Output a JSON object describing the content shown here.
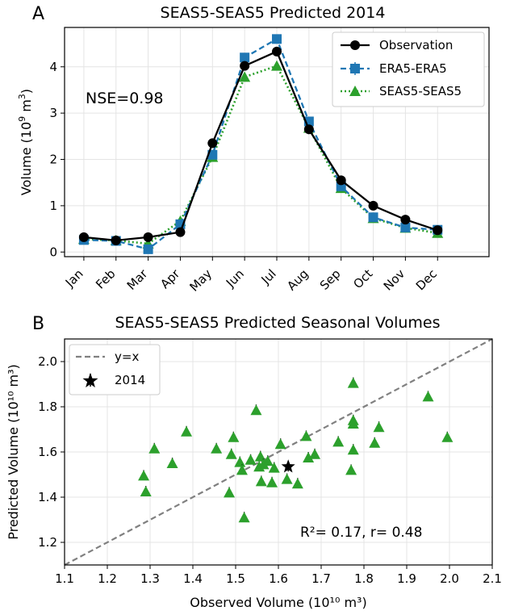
{
  "panels": [
    {
      "letter": "A"
    },
    {
      "letter": "B"
    }
  ],
  "chart_data": [
    {
      "type": "line",
      "title": "SEAS5-SEAS5 Predicted 2014",
      "ylabel": "Volume (10⁹ m³)",
      "xlabel": "",
      "categories": [
        "Jan",
        "Feb",
        "Mar",
        "Apr",
        "May",
        "Jun",
        "Jul",
        "Aug",
        "Sep",
        "Oct",
        "Nov",
        "Dec"
      ],
      "ylim": [
        -0.1,
        4.85
      ],
      "yticks": [
        0,
        1,
        2,
        3,
        4
      ],
      "annotation": "NSE=0.98",
      "annotation_color": "#2ca02c",
      "legend_position": "top-right",
      "series": [
        {
          "name": "Observation",
          "color": "#000000",
          "style": "solid",
          "marker": "circle",
          "values": [
            0.32,
            0.25,
            0.32,
            0.43,
            2.35,
            4.02,
            4.33,
            2.65,
            1.55,
            1.0,
            0.7,
            0.47
          ]
        },
        {
          "name": "ERA5-ERA5",
          "color": "#1f77b4",
          "style": "dashed",
          "marker": "square",
          "values": [
            0.26,
            0.24,
            0.06,
            0.6,
            2.1,
            4.2,
            4.6,
            2.82,
            1.42,
            0.75,
            0.53,
            0.48
          ]
        },
        {
          "name": "SEAS5-SEAS5",
          "color": "#2ca02c",
          "style": "dotted",
          "marker": "triangle",
          "values": [
            0.28,
            0.25,
            0.18,
            0.67,
            2.05,
            3.78,
            4.02,
            2.68,
            1.38,
            0.73,
            0.52,
            0.41
          ]
        }
      ]
    },
    {
      "type": "scatter",
      "title": "SEAS5-SEAS5 Predicted Seasonal Volumes",
      "xlabel": "Observed Volume (10¹⁰ m³)",
      "ylabel": "Predicted Volume (10¹⁰ m³)",
      "xlim": [
        1.1,
        2.1
      ],
      "ylim": [
        1.1,
        2.1
      ],
      "xticks": [
        "1.1",
        "1.2",
        "1.3",
        "1.4",
        "1.5",
        "1.6",
        "1.7",
        "1.8",
        "1.9",
        "2.0",
        "2.1"
      ],
      "yticks": [
        "1.2",
        "1.4",
        "1.6",
        "1.8",
        "2.0"
      ],
      "annotation": "R²= 0.17, r= 0.48",
      "legend_position": "top-left",
      "legend": [
        {
          "name": "y=x"
        },
        {
          "name": "2014"
        }
      ],
      "reference_line": "y=x",
      "colors": {
        "points": "#2ca02c",
        "reference": "#808080",
        "highlight": "#000000"
      },
      "points": [
        [
          1.285,
          1.495
        ],
        [
          1.29,
          1.425
        ],
        [
          1.31,
          1.615
        ],
        [
          1.352,
          1.55
        ],
        [
          1.385,
          1.69
        ],
        [
          1.455,
          1.615
        ],
        [
          1.485,
          1.42
        ],
        [
          1.49,
          1.59
        ],
        [
          1.495,
          1.665
        ],
        [
          1.51,
          1.555
        ],
        [
          1.515,
          1.52
        ],
        [
          1.52,
          1.31
        ],
        [
          1.535,
          1.565
        ],
        [
          1.548,
          1.785
        ],
        [
          1.555,
          1.535
        ],
        [
          1.558,
          1.58
        ],
        [
          1.56,
          1.47
        ],
        [
          1.565,
          1.545
        ],
        [
          1.575,
          1.56
        ],
        [
          1.585,
          1.465
        ],
        [
          1.59,
          1.53
        ],
        [
          1.605,
          1.635
        ],
        [
          1.62,
          1.48
        ],
        [
          1.645,
          1.46
        ],
        [
          1.665,
          1.67
        ],
        [
          1.67,
          1.575
        ],
        [
          1.685,
          1.59
        ],
        [
          1.74,
          1.645
        ],
        [
          1.77,
          1.52
        ],
        [
          1.775,
          1.61
        ],
        [
          1.775,
          1.725
        ],
        [
          1.775,
          1.74
        ],
        [
          1.775,
          1.905
        ],
        [
          1.825,
          1.64
        ],
        [
          1.835,
          1.71
        ],
        [
          1.95,
          1.845
        ],
        [
          1.995,
          1.665
        ]
      ],
      "highlight": {
        "name": "2014",
        "x": 1.623,
        "y": 1.535
      }
    }
  ]
}
